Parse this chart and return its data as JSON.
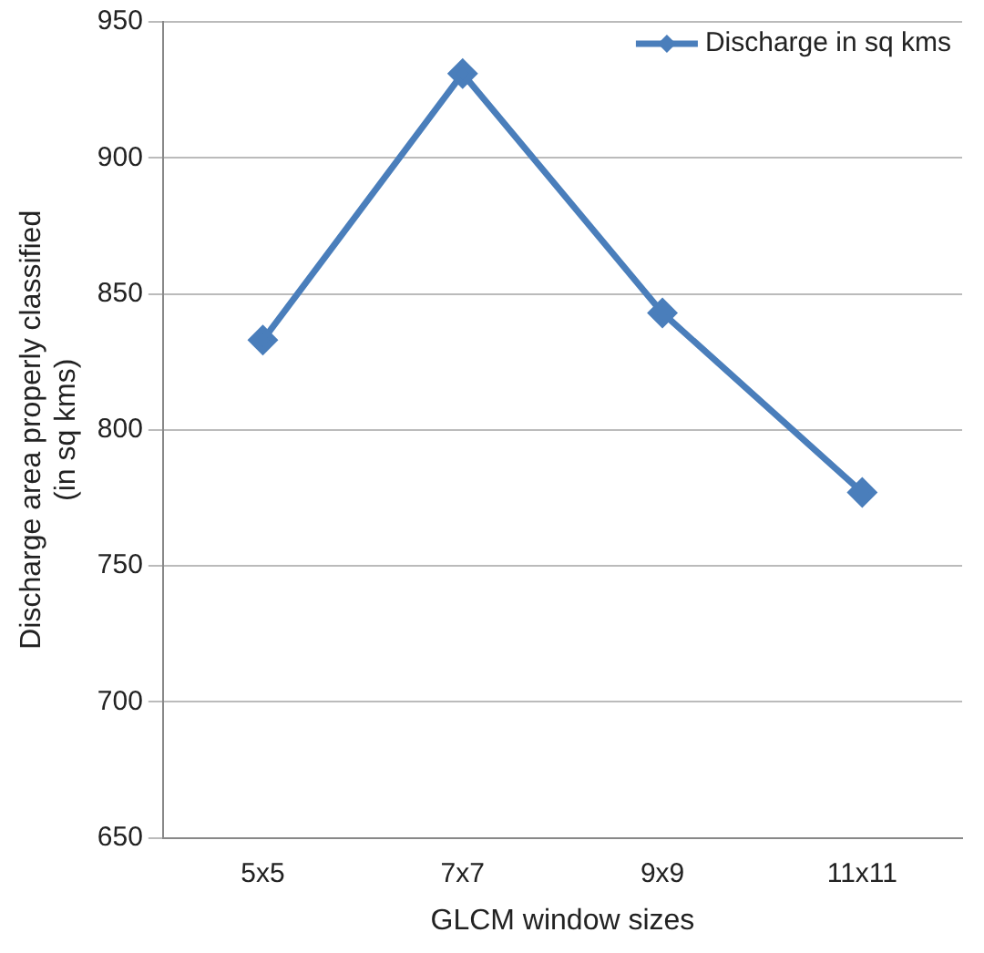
{
  "chart_data": {
    "type": "line",
    "xlabel": "GLCM window sizes",
    "ylabel": "Discharge area properly classified\n(in sq kms)",
    "categories": [
      "5x5",
      "7x7",
      "9x9",
      "11x11"
    ],
    "series": [
      {
        "name": "Discharge in sq kms",
        "color": "#4a7ebb",
        "values": [
          833,
          931,
          843,
          777
        ]
      }
    ],
    "ylim": [
      650,
      950
    ],
    "yticks": [
      650,
      700,
      750,
      800,
      850,
      900,
      950
    ],
    "grid": "y",
    "legend": "top right",
    "marker": "diamond",
    "line_style": "solid"
  }
}
